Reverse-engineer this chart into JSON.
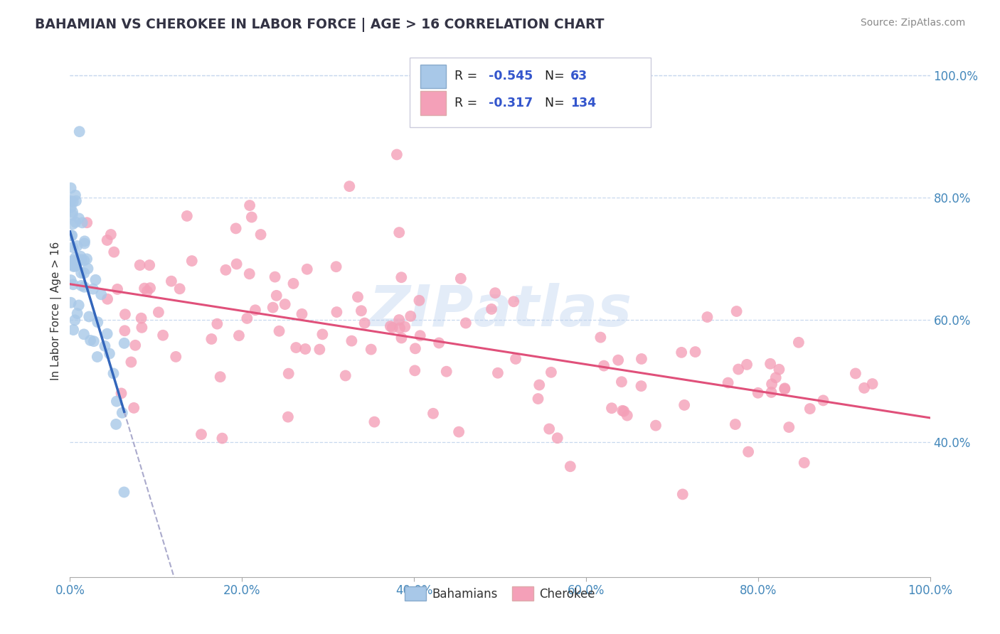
{
  "title": "BAHAMIAN VS CHEROKEE IN LABOR FORCE | AGE > 16 CORRELATION CHART",
  "source": "Source: ZipAtlas.com",
  "ylabel": "In Labor Force | Age > 16",
  "legend_labels": [
    "Bahamians",
    "Cherokee"
  ],
  "r_bahamian": -0.545,
  "n_bahamian": 63,
  "r_cherokee": -0.317,
  "n_cherokee": 134,
  "color_bahamian": "#a8c8e8",
  "color_cherokee": "#f4a0b8",
  "line_color_bahamian": "#3366bb",
  "line_color_cherokee": "#e0507a",
  "background_color": "#ffffff",
  "grid_color": "#c8d8ee",
  "xlim": [
    0.0,
    1.0
  ],
  "ylim": [
    0.18,
    1.05
  ],
  "x_tick_vals": [
    0.0,
    0.2,
    0.4,
    0.6,
    0.8,
    1.0
  ],
  "y_tick_vals": [
    0.4,
    0.6,
    0.8,
    1.0
  ],
  "seed_bah": 42,
  "seed_cher": 99
}
